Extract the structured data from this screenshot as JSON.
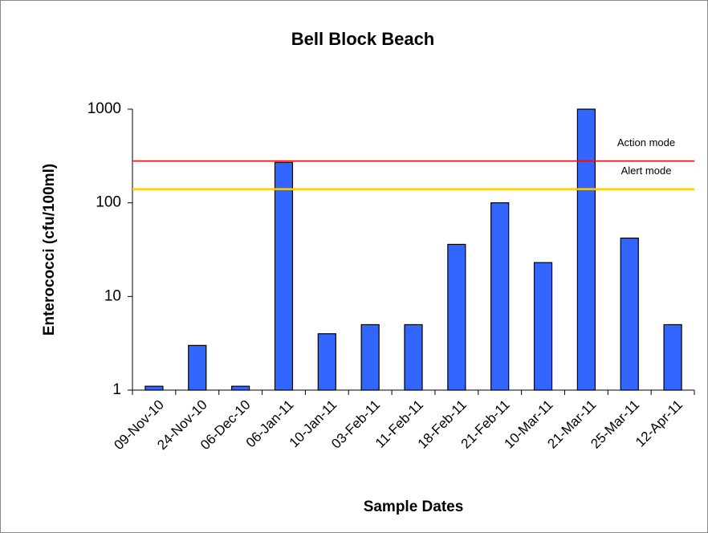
{
  "chart_data": {
    "type": "bar",
    "title": "Bell Block Beach",
    "x_label": "Sample Dates",
    "y_label": "Enterococci (cfu/100ml)",
    "categories": [
      "09-Nov-10",
      "24-Nov-10",
      "06-Dec-10",
      "06-Jan-11",
      "10-Jan-11",
      "03-Feb-11",
      "11-Feb-11",
      "18-Feb-11",
      "21-Feb-11",
      "10-Mar-11",
      "21-Mar-11",
      "25-Mar-11",
      "12-Apr-11"
    ],
    "values": [
      1.1,
      3,
      1.1,
      270,
      4,
      5,
      5,
      36,
      100,
      23,
      1000,
      42,
      5
    ],
    "color": "#3366ff",
    "ylim": [
      1,
      1000
    ],
    "yticks": [
      1,
      10,
      100,
      1000
    ],
    "log_y": true,
    "grid": false,
    "reference_lines": [
      {
        "name": "Action mode",
        "value": 280,
        "color": "#ff0000"
      },
      {
        "name": "Alert mode",
        "value": 140,
        "color": "#ffcc00"
      }
    ]
  }
}
